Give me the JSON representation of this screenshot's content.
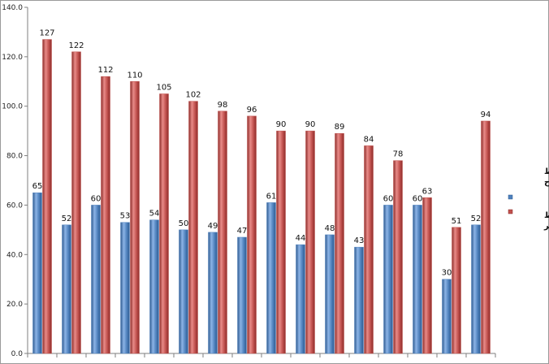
{
  "chart_data": {
    "type": "bar",
    "ylim": [
      0,
      140
    ],
    "yticks": [
      "0.0",
      "20.0",
      "40.0",
      "60.0",
      "80.0",
      "100.0",
      "120.0",
      "140.0"
    ],
    "grid": false,
    "legend_position": "right",
    "series": [
      {
        "name": "متوسط الأرباح",
        "color": "#4f81bd",
        "values": [
          65,
          52,
          60,
          53,
          54,
          50,
          49,
          47,
          61,
          44,
          48,
          43,
          60,
          60,
          30,
          52
        ]
      },
      {
        "name": "متوسط الخسائر",
        "color": "#c0504d",
        "values": [
          127,
          122,
          112,
          110,
          105,
          102,
          98,
          96,
          90,
          90,
          89,
          84,
          78,
          63,
          51,
          94
        ]
      }
    ]
  }
}
